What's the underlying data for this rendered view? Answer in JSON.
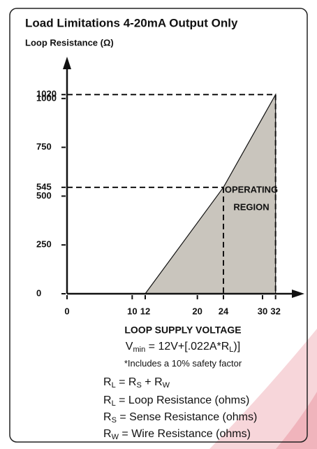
{
  "chart_data": {
    "type": "area",
    "title": "Load Limitations 4-20mA Output Only",
    "y_label": "Loop Resistance (Ω)",
    "x_label": "LOOP SUPPLY VOLTAGE",
    "region_label": [
      "OPERATING",
      "REGION"
    ],
    "x": [
      12,
      24,
      32
    ],
    "values": [
      0,
      545,
      1020
    ],
    "color": "#c9c5bd",
    "xlim": [
      0,
      36
    ],
    "ylim": [
      0,
      1200
    ],
    "xticks": [
      0,
      10,
      12,
      20,
      24,
      30,
      32
    ],
    "yticks": [
      0,
      250,
      500,
      545,
      750,
      1000,
      1020
    ],
    "notes": [
      [
        "V",
        "min",
        " = 12V+[.022A*R",
        "L",
        ")]"
      ],
      [
        "*Includes a 10% safety factor"
      ],
      [
        "R",
        "L",
        " = R",
        "S",
        " + R",
        "W"
      ],
      [
        "R",
        "L",
        " = Loop Resistance (ohms)"
      ],
      [
        "R",
        "S",
        " = Sense Resistance (ohms)"
      ],
      [
        "R",
        "W",
        " = Wire Resistance (ohms)"
      ]
    ]
  }
}
